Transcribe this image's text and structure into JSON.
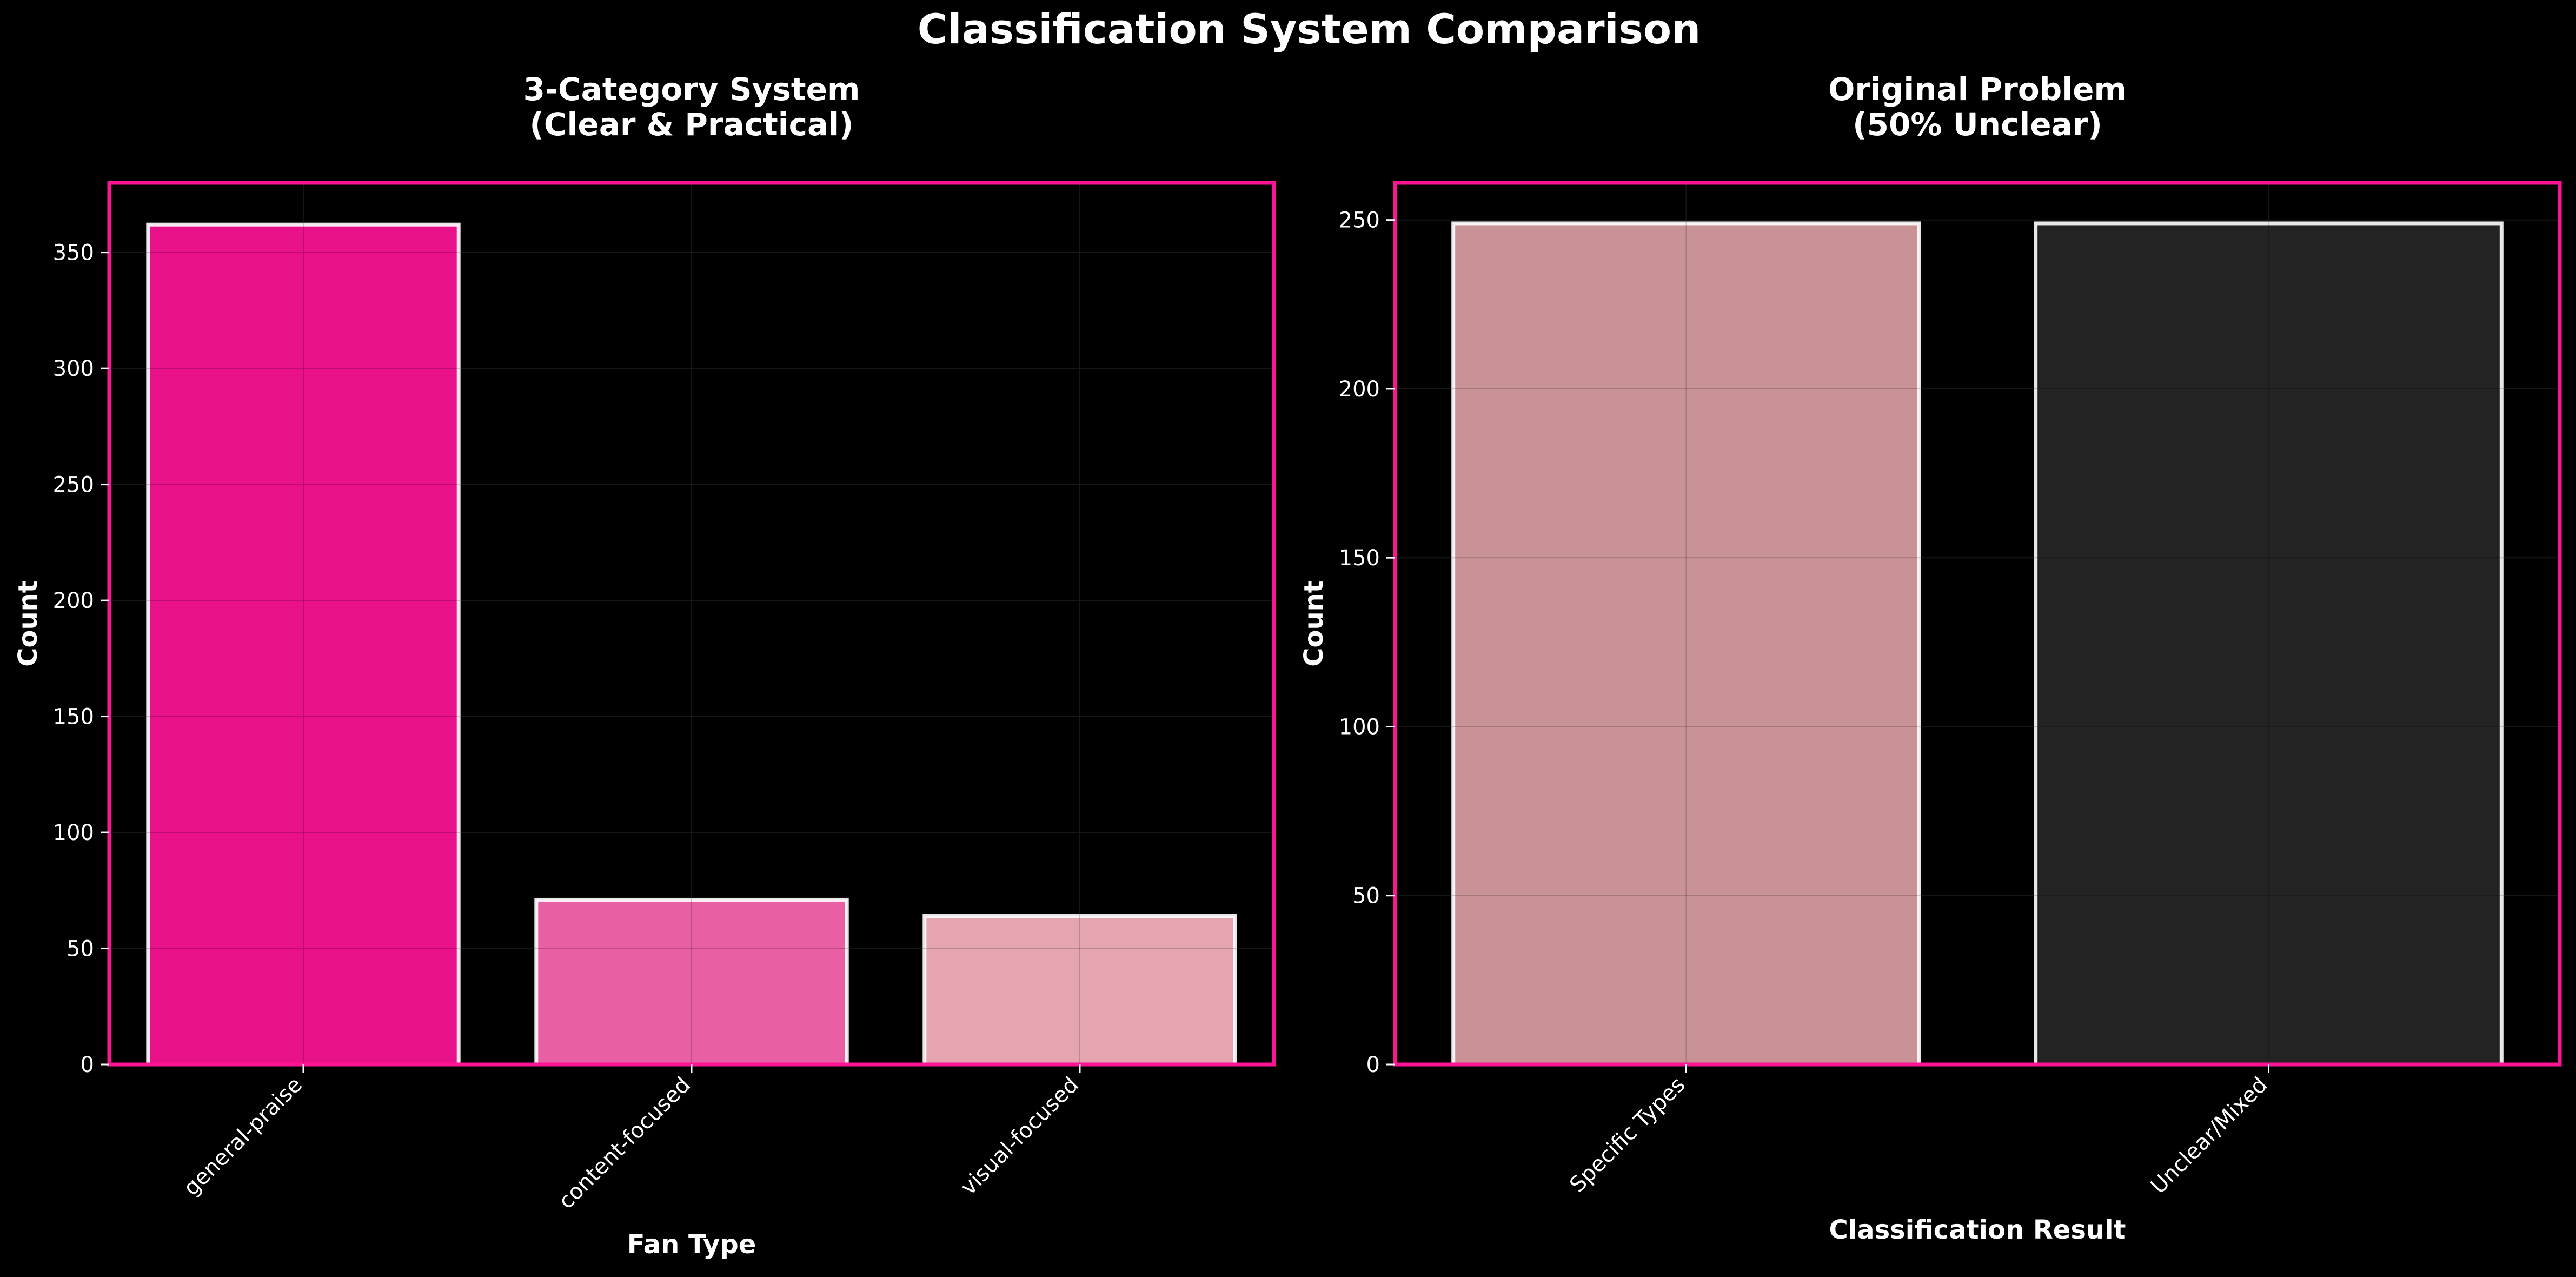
{
  "figure_title": "Classification System Comparison",
  "colors": {
    "background": "#000000",
    "frame": "#ff1493",
    "text": "#ffffff",
    "grid": "#333333",
    "bar_edge": "#ffffff"
  },
  "chart_data": [
    {
      "type": "bar",
      "title_lines": [
        "3-Category System",
        "(Clear & Practical)"
      ],
      "xlabel": "Fan Type",
      "ylabel": "Count",
      "categories": [
        "general-praise",
        "content-focused",
        "visual-focused"
      ],
      "values": [
        362,
        71,
        64
      ],
      "bar_colors": [
        "#e8118a",
        "#e85fa3",
        "#e4a5ae"
      ],
      "ylim": [
        0,
        380
      ],
      "yticks": [
        0,
        50,
        100,
        150,
        200,
        250,
        300,
        350
      ],
      "grid": true
    },
    {
      "type": "bar",
      "title_lines": [
        "Original Problem",
        "(50% Unclear)"
      ],
      "xlabel": "Classification Result",
      "ylabel": "Count",
      "categories": [
        "Specific Types",
        "Unclear/Mixed"
      ],
      "values": [
        249,
        249
      ],
      "bar_colors": [
        "#c99297",
        "#232323"
      ],
      "ylim": [
        0,
        261
      ],
      "yticks": [
        0,
        50,
        100,
        150,
        200,
        250
      ],
      "grid": true
    }
  ]
}
